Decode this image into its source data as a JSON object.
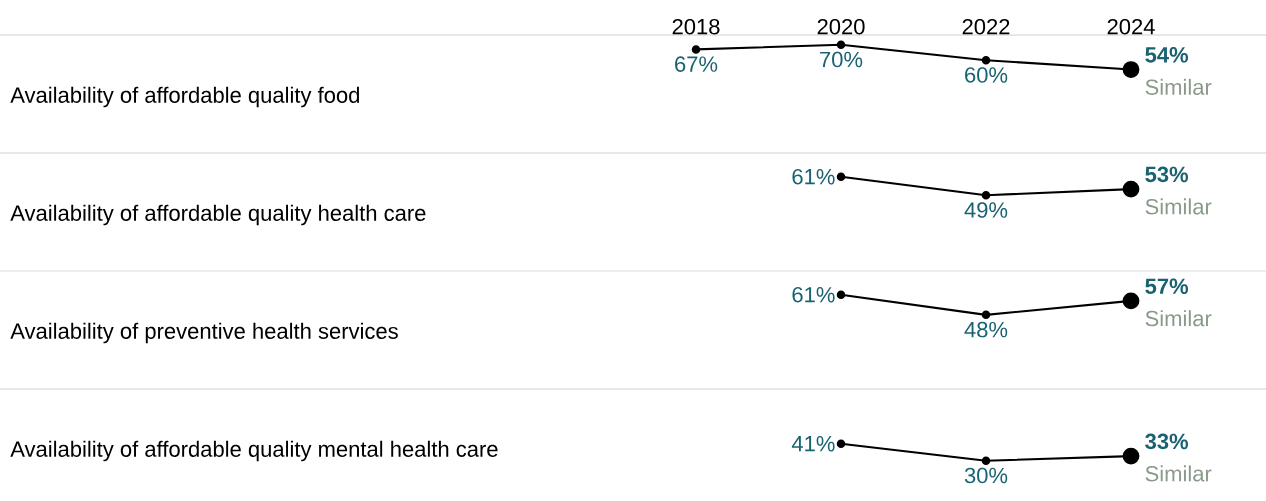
{
  "chart_data": [
    {
      "type": "line",
      "ylabel": "Availability of affordable quality food",
      "categories": [
        "2018",
        "2020",
        "2022",
        "2024"
      ],
      "series": [
        {
          "color": "#000000",
          "values": [
            67,
            70,
            60,
            54
          ],
          "value_labels": [
            "67%",
            "70%",
            "60%",
            "54%"
          ]
        }
      ],
      "annotations": [
        "Similar"
      ],
      "marker": "circle",
      "tick_labels": "x"
    },
    {
      "type": "line",
      "ylabel": "Availability of affordable quality health care",
      "categories": [
        "2018",
        "2020",
        "2022",
        "2024"
      ],
      "series": [
        {
          "color": "#000000",
          "values": [
            null,
            61,
            49,
            53
          ],
          "value_labels": [
            null,
            "61%",
            "49%",
            "53%"
          ]
        }
      ],
      "annotations": [
        "Similar"
      ],
      "marker": "circle",
      "tick_labels": false
    },
    {
      "type": "line",
      "ylabel": "Availability of preventive health services",
      "categories": [
        "2018",
        "2020",
        "2022",
        "2024"
      ],
      "series": [
        {
          "color": "#000000",
          "values": [
            null,
            61,
            48,
            57
          ],
          "value_labels": [
            null,
            "61%",
            "48%",
            "57%"
          ]
        }
      ],
      "annotations": [
        "Similar"
      ],
      "marker": "circle",
      "tick_labels": false
    },
    {
      "type": "line",
      "ylabel": "Availability of affordable quality mental health care",
      "categories": [
        "2018",
        "2020",
        "2022",
        "2024"
      ],
      "series": [
        {
          "color": "#000000",
          "values": [
            null,
            41,
            30,
            33
          ],
          "value_labels": [
            null,
            "41%",
            "30%",
            "33%"
          ]
        }
      ],
      "annotations": [
        "Similar"
      ],
      "marker": "circle",
      "tick_labels": false
    }
  ]
}
